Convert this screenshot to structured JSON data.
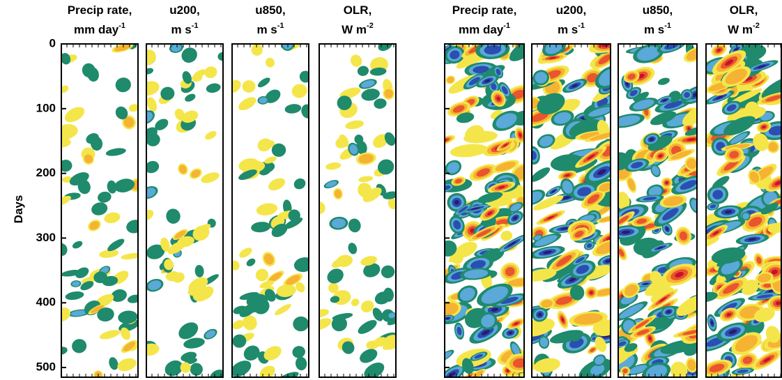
{
  "chart_data": {
    "type": "heatmap",
    "ylabel": "Days",
    "ylim": [
      0,
      515
    ],
    "yticks": [
      0,
      100,
      200,
      300,
      400,
      500
    ],
    "panels": [
      {
        "title": "Precip rate,",
        "unit": "mm day",
        "unit_exp": "-1"
      },
      {
        "title": "u200,",
        "unit": "m s",
        "unit_exp": "-1"
      },
      {
        "title": "u850,",
        "unit": "m s",
        "unit_exp": "-1"
      },
      {
        "title": "OLR,",
        "unit": "W m",
        "unit_exp": "-2"
      },
      {
        "title": "Precip rate,",
        "unit": "mm day",
        "unit_exp": "-1"
      },
      {
        "title": "u200,",
        "unit": "m s",
        "unit_exp": "-1"
      },
      {
        "title": "u850,",
        "unit": "m s",
        "unit_exp": "-1"
      },
      {
        "title": "OLR,",
        "unit": "W m",
        "unit_exp": "-2"
      }
    ]
  }
}
